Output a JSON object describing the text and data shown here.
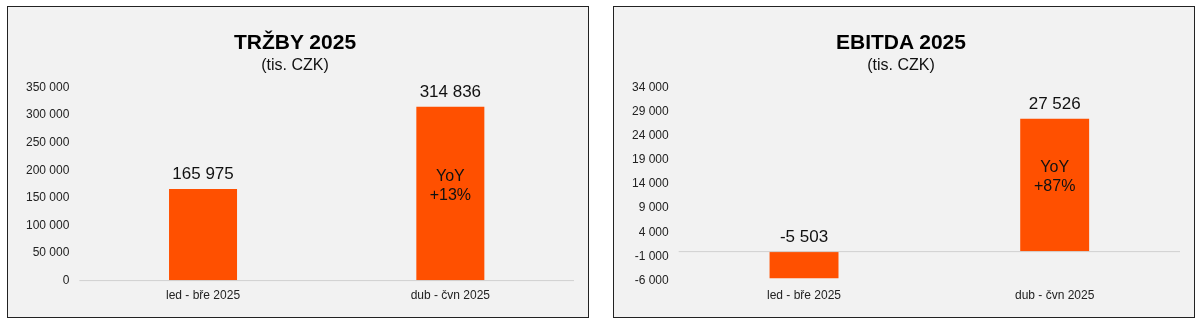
{
  "chart_data": [
    {
      "type": "bar",
      "title": "TRŽBY 2025",
      "subtitle": "(tis. CZK)",
      "categories": [
        "led - bře 2025",
        "dub - čvn 2025"
      ],
      "series": [
        {
          "color": "#ff5000",
          "values": [
            165975,
            314836
          ],
          "value_labels": [
            "165 975",
            "314 836"
          ]
        }
      ],
      "ylim": [
        0,
        350000
      ],
      "yticks": [
        {
          "value": 0,
          "label": "0"
        },
        {
          "value": 50000,
          "label": "50 000"
        },
        {
          "value": 100000,
          "label": "100 000"
        },
        {
          "value": 150000,
          "label": "150 000"
        },
        {
          "value": 200000,
          "label": "200 000"
        },
        {
          "value": 250000,
          "label": "250 000"
        },
        {
          "value": 300000,
          "label": "300 000"
        },
        {
          "value": 350000,
          "label": "350 000"
        }
      ],
      "annotations": [
        "YoY\n+13%"
      ],
      "grid": false,
      "legend": false
    },
    {
      "type": "bar",
      "title": "EBITDA 2025",
      "subtitle": "(tis. CZK)",
      "categories": [
        "led - bře 2025",
        "dub - čvn 2025"
      ],
      "series": [
        {
          "color": "#ff5000",
          "values": [
            -5503,
            27526
          ],
          "value_labels": [
            "-5 503",
            "27 526"
          ]
        }
      ],
      "ylim": [
        -6000,
        34000
      ],
      "yticks": [
        {
          "value": -6000,
          "label": "-6 000"
        },
        {
          "value": -1000,
          "label": "-1 000"
        },
        {
          "value": 4000,
          "label": "4 000"
        },
        {
          "value": 9000,
          "label": "9 000"
        },
        {
          "value": 14000,
          "label": "14 000"
        },
        {
          "value": 19000,
          "label": "19 000"
        },
        {
          "value": 24000,
          "label": "24 000"
        },
        {
          "value": 29000,
          "label": "29 000"
        },
        {
          "value": 34000,
          "label": "34 000"
        }
      ],
      "annotations": [
        "YoY\n+87%"
      ],
      "grid": false,
      "legend": false
    }
  ]
}
